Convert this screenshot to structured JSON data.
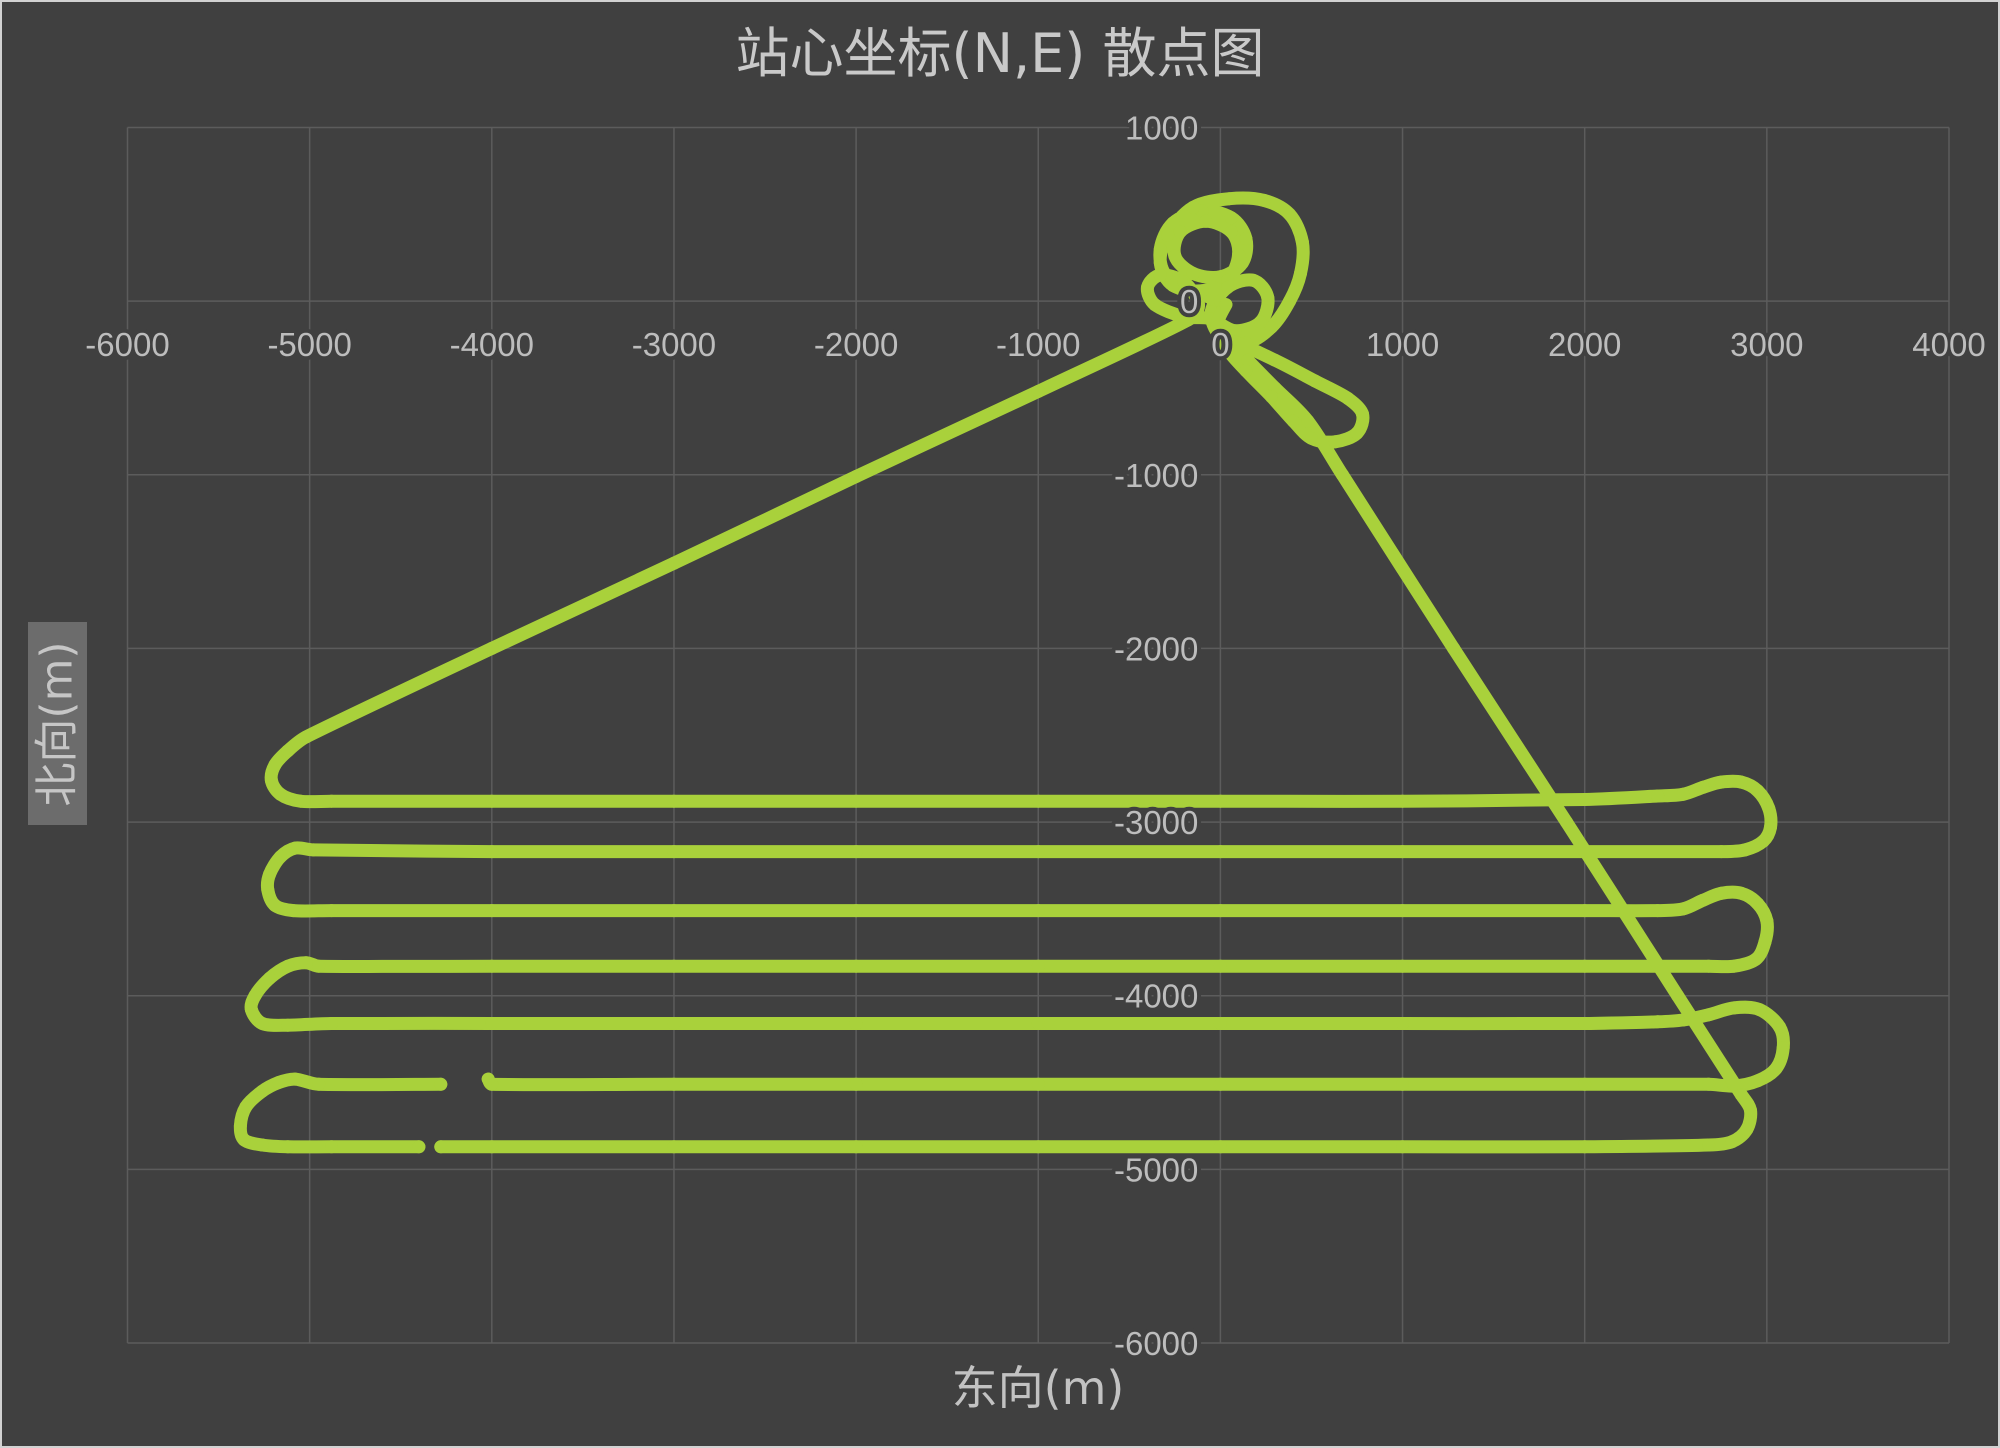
{
  "chart_data": {
    "type": "scatter",
    "title": "站心坐标(N,E) 散点图",
    "xlabel": "东向(m)",
    "ylabel": "北向(m)",
    "xlim": [
      -6000,
      4000
    ],
    "ylim": [
      -6000,
      1000
    ],
    "xticks": [
      -6000,
      -5000,
      -4000,
      -3000,
      -2000,
      -1000,
      0,
      1000,
      2000,
      3000,
      4000
    ],
    "yticks": [
      1000,
      0,
      -1000,
      -2000,
      -3000,
      -4000,
      -5000,
      -6000
    ],
    "grid": true,
    "series": [
      {
        "color": "#a9d13b",
        "runs": [
          [
            [
              0,
              0
            ],
            [
              -150,
              60
            ],
            [
              -300,
              150
            ],
            [
              -330,
              300
            ],
            [
              -260,
              450
            ],
            [
              -100,
              520
            ],
            [
              60,
              480
            ],
            [
              140,
              360
            ],
            [
              120,
              220
            ],
            [
              0,
              140
            ],
            [
              -150,
              160
            ],
            [
              -250,
              260
            ],
            [
              -220,
              400
            ],
            [
              -80,
              460
            ],
            [
              60,
              400
            ],
            [
              100,
              270
            ],
            [
              40,
              120
            ],
            [
              -100,
              60
            ],
            [
              -260,
              90
            ],
            [
              -330,
              220
            ],
            [
              -290,
              380
            ],
            [
              -150,
              540
            ],
            [
              50,
              590
            ],
            [
              240,
              580
            ],
            [
              380,
              500
            ],
            [
              450,
              340
            ],
            [
              440,
              160
            ],
            [
              380,
              0
            ],
            [
              280,
              -150
            ],
            [
              140,
              -240
            ],
            [
              0,
              -200
            ],
            [
              -50,
              -60
            ],
            [
              40,
              80
            ],
            [
              180,
              120
            ],
            [
              260,
              20
            ],
            [
              220,
              -120
            ],
            [
              80,
              -170
            ],
            [
              -60,
              -100
            ],
            [
              -200,
              -90
            ],
            [
              -360,
              -20
            ],
            [
              -400,
              80
            ],
            [
              -330,
              150
            ],
            [
              -200,
              110
            ],
            [
              -120,
              -20
            ],
            [
              -180,
              -110
            ],
            [
              -1000,
              -520
            ],
            [
              -2000,
              -1010
            ],
            [
              -3000,
              -1510
            ],
            [
              -4000,
              -2000
            ],
            [
              -5020,
              -2510
            ],
            [
              -5120,
              -2590
            ],
            [
              -5190,
              -2670
            ],
            [
              -5210,
              -2760
            ],
            [
              -5160,
              -2840
            ],
            [
              -5050,
              -2880
            ],
            [
              -4880,
              -2880
            ],
            [
              -4000,
              -2880
            ],
            [
              -3000,
              -2880
            ],
            [
              -2000,
              -2880
            ],
            [
              -1000,
              -2880
            ],
            [
              0,
              -2880
            ],
            [
              1000,
              -2880
            ],
            [
              2000,
              -2870
            ],
            [
              2400,
              -2850
            ],
            [
              2540,
              -2840
            ],
            [
              2650,
              -2800
            ],
            [
              2750,
              -2770
            ],
            [
              2860,
              -2770
            ],
            [
              2950,
              -2820
            ],
            [
              3010,
              -2920
            ],
            [
              3020,
              -3030
            ],
            [
              2980,
              -3110
            ],
            [
              2880,
              -3160
            ],
            [
              2750,
              -3170
            ],
            [
              2000,
              -3170
            ],
            [
              1000,
              -3170
            ],
            [
              0,
              -3170
            ],
            [
              -1000,
              -3170
            ],
            [
              -2000,
              -3170
            ],
            [
              -3000,
              -3170
            ],
            [
              -4000,
              -3170
            ],
            [
              -4980,
              -3160
            ],
            [
              -5080,
              -3150
            ],
            [
              -5160,
              -3200
            ],
            [
              -5220,
              -3300
            ],
            [
              -5230,
              -3390
            ],
            [
              -5190,
              -3480
            ],
            [
              -5090,
              -3510
            ],
            [
              -4880,
              -3510
            ],
            [
              -4000,
              -3510
            ],
            [
              -3000,
              -3510
            ],
            [
              -2000,
              -3510
            ],
            [
              -1000,
              -3510
            ],
            [
              0,
              -3510
            ],
            [
              1000,
              -3510
            ],
            [
              2000,
              -3510
            ],
            [
              2400,
              -3510
            ],
            [
              2540,
              -3500
            ],
            [
              2650,
              -3450
            ],
            [
              2750,
              -3410
            ],
            [
              2860,
              -3410
            ],
            [
              2950,
              -3470
            ],
            [
              3000,
              -3570
            ],
            [
              2990,
              -3690
            ],
            [
              2940,
              -3790
            ],
            [
              2820,
              -3830
            ],
            [
              2680,
              -3830
            ],
            [
              2000,
              -3830
            ],
            [
              1000,
              -3830
            ],
            [
              0,
              -3830
            ],
            [
              -1000,
              -3830
            ],
            [
              -2000,
              -3830
            ],
            [
              -3000,
              -3830
            ],
            [
              -4000,
              -3830
            ],
            [
              -4950,
              -3830
            ],
            [
              -5020,
              -3810
            ],
            [
              -5120,
              -3830
            ],
            [
              -5220,
              -3900
            ],
            [
              -5300,
              -4000
            ],
            [
              -5320,
              -4080
            ],
            [
              -5260,
              -4160
            ],
            [
              -5120,
              -4170
            ],
            [
              -4880,
              -4160
            ],
            [
              -4000,
              -4160
            ],
            [
              -3000,
              -4160
            ],
            [
              -2000,
              -4160
            ],
            [
              -1000,
              -4160
            ],
            [
              0,
              -4160
            ],
            [
              1000,
              -4160
            ],
            [
              2000,
              -4160
            ],
            [
              2400,
              -4150
            ],
            [
              2540,
              -4140
            ],
            [
              2680,
              -4110
            ],
            [
              2820,
              -4070
            ],
            [
              2960,
              -4080
            ],
            [
              3070,
              -4180
            ],
            [
              3090,
              -4300
            ],
            [
              3050,
              -4420
            ],
            [
              2950,
              -4490
            ],
            [
              2820,
              -4520
            ],
            [
              2680,
              -4510
            ],
            [
              2000,
              -4510
            ],
            [
              1000,
              -4510
            ],
            [
              0,
              -4510
            ],
            [
              -1000,
              -4510
            ],
            [
              -2000,
              -4510
            ],
            [
              -3000,
              -4510
            ],
            [
              -4000,
              -4510
            ],
            [
              -4020,
              -4480
            ]
          ],
          [
            [
              -4280,
              -4510
            ],
            [
              -4950,
              -4510
            ],
            [
              -5080,
              -4480
            ],
            [
              -5170,
              -4500
            ],
            [
              -5260,
              -4550
            ],
            [
              -5350,
              -4640
            ],
            [
              -5380,
              -4750
            ],
            [
              -5360,
              -4830
            ],
            [
              -5260,
              -4860
            ],
            [
              -5120,
              -4870
            ],
            [
              -4880,
              -4870
            ],
            [
              -4400,
              -4870
            ]
          ],
          [
            [
              -4280,
              -4870
            ],
            [
              -4000,
              -4870
            ],
            [
              -3000,
              -4870
            ],
            [
              -2000,
              -4870
            ],
            [
              -1000,
              -4870
            ],
            [
              0,
              -4870
            ],
            [
              1000,
              -4870
            ],
            [
              2000,
              -4870
            ],
            [
              2680,
              -4860
            ],
            [
              2810,
              -4840
            ],
            [
              2890,
              -4770
            ],
            [
              2910,
              -4660
            ],
            [
              2860,
              -4570
            ],
            [
              2510,
              -4000
            ],
            [
              1900,
              -3000
            ],
            [
              1280,
              -2000
            ],
            [
              670,
              -1000
            ],
            [
              480,
              -690
            ],
            [
              300,
              -500
            ],
            [
              150,
              -340
            ],
            [
              60,
              -230
            ],
            [
              300,
              -340
            ],
            [
              520,
              -460
            ],
            [
              700,
              -560
            ],
            [
              780,
              -650
            ],
            [
              750,
              -760
            ],
            [
              630,
              -810
            ],
            [
              500,
              -790
            ],
            [
              400,
              -690
            ],
            [
              280,
              -550
            ],
            [
              140,
              -400
            ],
            [
              40,
              -280
            ],
            [
              -20,
              -150
            ],
            [
              30,
              -20
            ]
          ]
        ]
      }
    ]
  }
}
